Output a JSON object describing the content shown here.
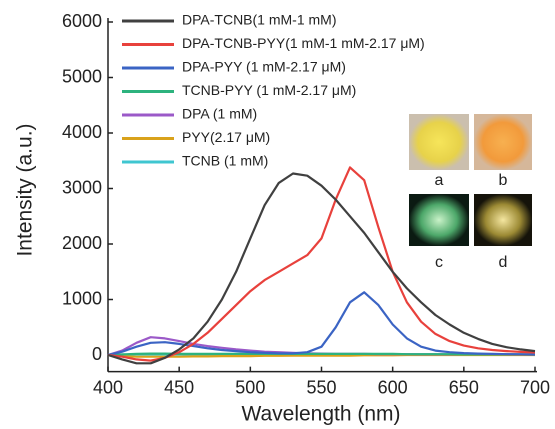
{
  "chart_data": {
    "type": "line",
    "x_label": "Wavelength (nm)",
    "y_label": "Intensity (a.u.)",
    "x": [
      400,
      410,
      420,
      430,
      440,
      450,
      460,
      470,
      480,
      490,
      500,
      510,
      520,
      530,
      540,
      550,
      560,
      570,
      580,
      590,
      600,
      610,
      620,
      630,
      640,
      650,
      660,
      670,
      680,
      690,
      700
    ],
    "xlim": [
      400,
      700
    ],
    "xticks": [
      400,
      450,
      500,
      550,
      600,
      650,
      700
    ],
    "ylim": [
      -300,
      6000
    ],
    "yticks": [
      0,
      1000,
      2000,
      3000,
      4000,
      5000,
      6000
    ],
    "legend": "upper left",
    "inset_labels": [
      "a",
      "b",
      "c",
      "d"
    ],
    "series": [
      {
        "name": "DPA-TCNB(1 mM-1 mM)",
        "color": "#404040",
        "values": [
          0,
          -80,
          -150,
          -150,
          -50,
          100,
          300,
          600,
          1000,
          1500,
          2100,
          2700,
          3100,
          3270,
          3230,
          3050,
          2800,
          2500,
          2200,
          1850,
          1500,
          1200,
          950,
          720,
          550,
          400,
          290,
          200,
          140,
          100,
          70
        ]
      },
      {
        "name": "DPA-TCNB-PYY(1 mM-1 mM-2.17 μM)",
        "color": "#e8413c",
        "values": [
          0,
          -30,
          -80,
          -100,
          -50,
          50,
          200,
          400,
          650,
          900,
          1150,
          1350,
          1500,
          1650,
          1800,
          2100,
          2800,
          3380,
          3150,
          2300,
          1500,
          950,
          600,
          380,
          250,
          170,
          120,
          90,
          70,
          55,
          45
        ]
      },
      {
        "name": "DPA-PYY (1 mM-2.17 μM)",
        "color": "#3b64c4",
        "values": [
          0,
          60,
          150,
          220,
          230,
          200,
          160,
          120,
          90,
          70,
          50,
          40,
          30,
          30,
          50,
          150,
          500,
          950,
          1130,
          900,
          550,
          300,
          150,
          80,
          50,
          35,
          25,
          20,
          15,
          10,
          8
        ]
      },
      {
        "name": "TCNB-PYY (1 mM-2.17 μM)",
        "color": "#2db37e",
        "values": [
          0,
          10,
          20,
          25,
          25,
          20,
          20,
          20,
          20,
          20,
          20,
          20,
          20,
          20,
          20,
          20,
          20,
          20,
          20,
          20,
          20,
          15,
          15,
          15,
          15,
          10,
          10,
          10,
          10,
          10,
          10
        ]
      },
      {
        "name": "DPA (1 mM)",
        "color": "#9b59c8",
        "values": [
          0,
          80,
          220,
          320,
          300,
          250,
          200,
          160,
          130,
          100,
          80,
          60,
          50,
          40,
          30,
          25,
          20,
          20,
          20,
          15,
          15,
          15,
          10,
          10,
          10,
          10,
          10,
          10,
          10,
          10,
          10
        ]
      },
      {
        "name": "PYY(2.17 μM)",
        "color": "#d9a21b",
        "values": [
          0,
          -20,
          -30,
          -30,
          -30,
          -30,
          -25,
          -25,
          -20,
          -20,
          -20,
          -15,
          -15,
          -10,
          -10,
          -10,
          -10,
          -10,
          -5,
          -5,
          -5,
          0,
          0,
          0,
          0,
          0,
          0,
          0,
          0,
          0,
          0
        ]
      },
      {
        "name": "TCNB (1 mM)",
        "color": "#3fc6d0",
        "values": [
          0,
          5,
          10,
          10,
          10,
          10,
          10,
          10,
          10,
          10,
          10,
          10,
          10,
          10,
          10,
          10,
          10,
          10,
          10,
          10,
          10,
          10,
          10,
          10,
          5,
          5,
          5,
          5,
          5,
          5,
          5
        ]
      }
    ]
  }
}
